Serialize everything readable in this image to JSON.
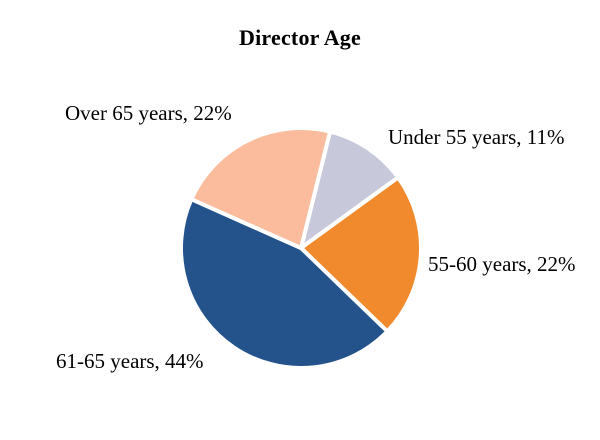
{
  "chart_data": {
    "type": "pie",
    "title": "Director Age",
    "legend_position": "none",
    "background_color": "#FFFFFF",
    "slice_border_color": "#FFFFFF",
    "slice_border_width": 4,
    "start_angle_deg": 14,
    "categories": [
      "Under 55 years",
      "55-60 years",
      "61-65 years",
      "Over 65 years"
    ],
    "values": [
      11,
      22,
      44,
      22
    ],
    "slices": [
      {
        "id": "under-55",
        "name": "Under 55 years",
        "percent": "11%",
        "value": 11,
        "label": "Under 55 years, 11%",
        "color": "#C7C9DA"
      },
      {
        "id": "55-60",
        "name": "55-60 years",
        "percent": "22%",
        "value": 22,
        "label": "55-60 years, 22%",
        "color": "#F1892D"
      },
      {
        "id": "61-65",
        "name": "61-65 years",
        "percent": "44%",
        "value": 44,
        "label": "61-65 years, 44%",
        "color": "#24538C"
      },
      {
        "id": "over-65",
        "name": "Over 65 years",
        "percent": "22%",
        "value": 22,
        "label": "Over 65 years, 22%",
        "color": "#FABC9C"
      }
    ]
  }
}
